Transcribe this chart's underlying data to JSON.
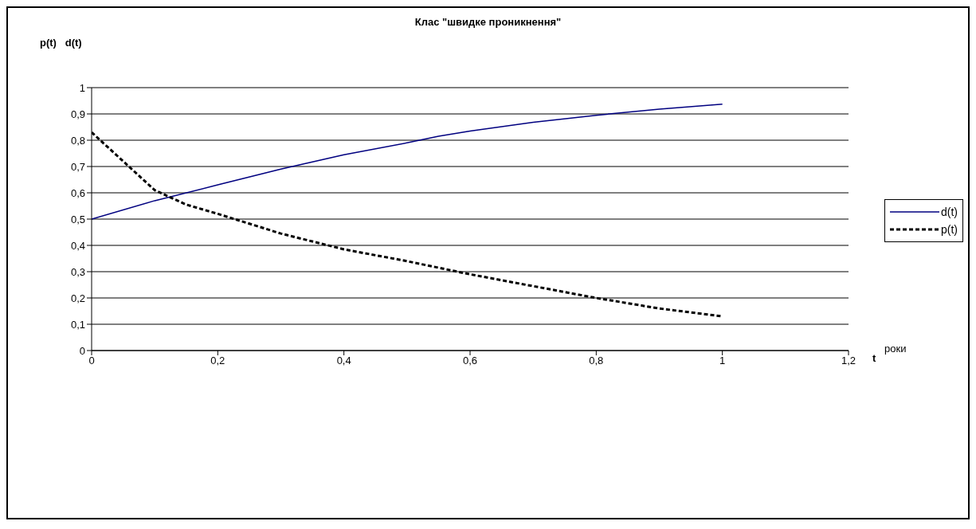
{
  "chart_data": {
    "type": "line",
    "title": "Клас \"швидке проникнення\"",
    "xlabel": "t",
    "ylabel": "p(t)   d(t)",
    "annotations": [
      "роки"
    ],
    "xlim": [
      0,
      1.2
    ],
    "xticks": [
      0,
      {
        "value": 0.2,
        "label": "0,2"
      },
      {
        "value": 0.4,
        "label": "0,4"
      },
      {
        "value": 0.6,
        "label": "0,6"
      },
      {
        "value": 0.8,
        "label": "0,8"
      },
      1,
      {
        "value": 1.2,
        "label": "1,2"
      }
    ],
    "ylim": [
      0,
      1
    ],
    "yticks": [
      0,
      {
        "value": 0.1,
        "label": "0,1"
      },
      {
        "value": 0.2,
        "label": "0,2"
      },
      {
        "value": 0.3,
        "label": "0,3"
      },
      {
        "value": 0.4,
        "label": "0,4"
      },
      {
        "value": 0.5,
        "label": "0,5"
      },
      {
        "value": 0.6,
        "label": "0,6"
      },
      {
        "value": 0.7,
        "label": "0,7"
      },
      {
        "value": 0.8,
        "label": "0,8"
      },
      {
        "value": 0.9,
        "label": "0,9"
      },
      1
    ],
    "grid": "y",
    "legend": "right",
    "series": [
      {
        "name": "d(t)",
        "color": "#000080",
        "line_style": "solid",
        "x": [
          0,
          0.1,
          0.2,
          0.3,
          0.4,
          0.5,
          0.55,
          0.6,
          0.7,
          0.8,
          0.9,
          1
        ],
        "values": [
          0.5,
          0.57,
          0.63,
          0.69,
          0.745,
          0.79,
          0.815,
          0.835,
          0.868,
          0.895,
          0.918,
          0.937
        ]
      },
      {
        "name": "p(t)",
        "color": "#000000",
        "line_style": "dashed",
        "x": [
          0,
          0.05,
          0.1,
          0.15,
          0.2,
          0.3,
          0.4,
          0.5,
          0.6,
          0.7,
          0.8,
          0.9,
          1
        ],
        "values": [
          0.83,
          0.72,
          0.61,
          0.555,
          0.52,
          0.445,
          0.385,
          0.34,
          0.29,
          0.245,
          0.2,
          0.16,
          0.13
        ]
      }
    ]
  }
}
